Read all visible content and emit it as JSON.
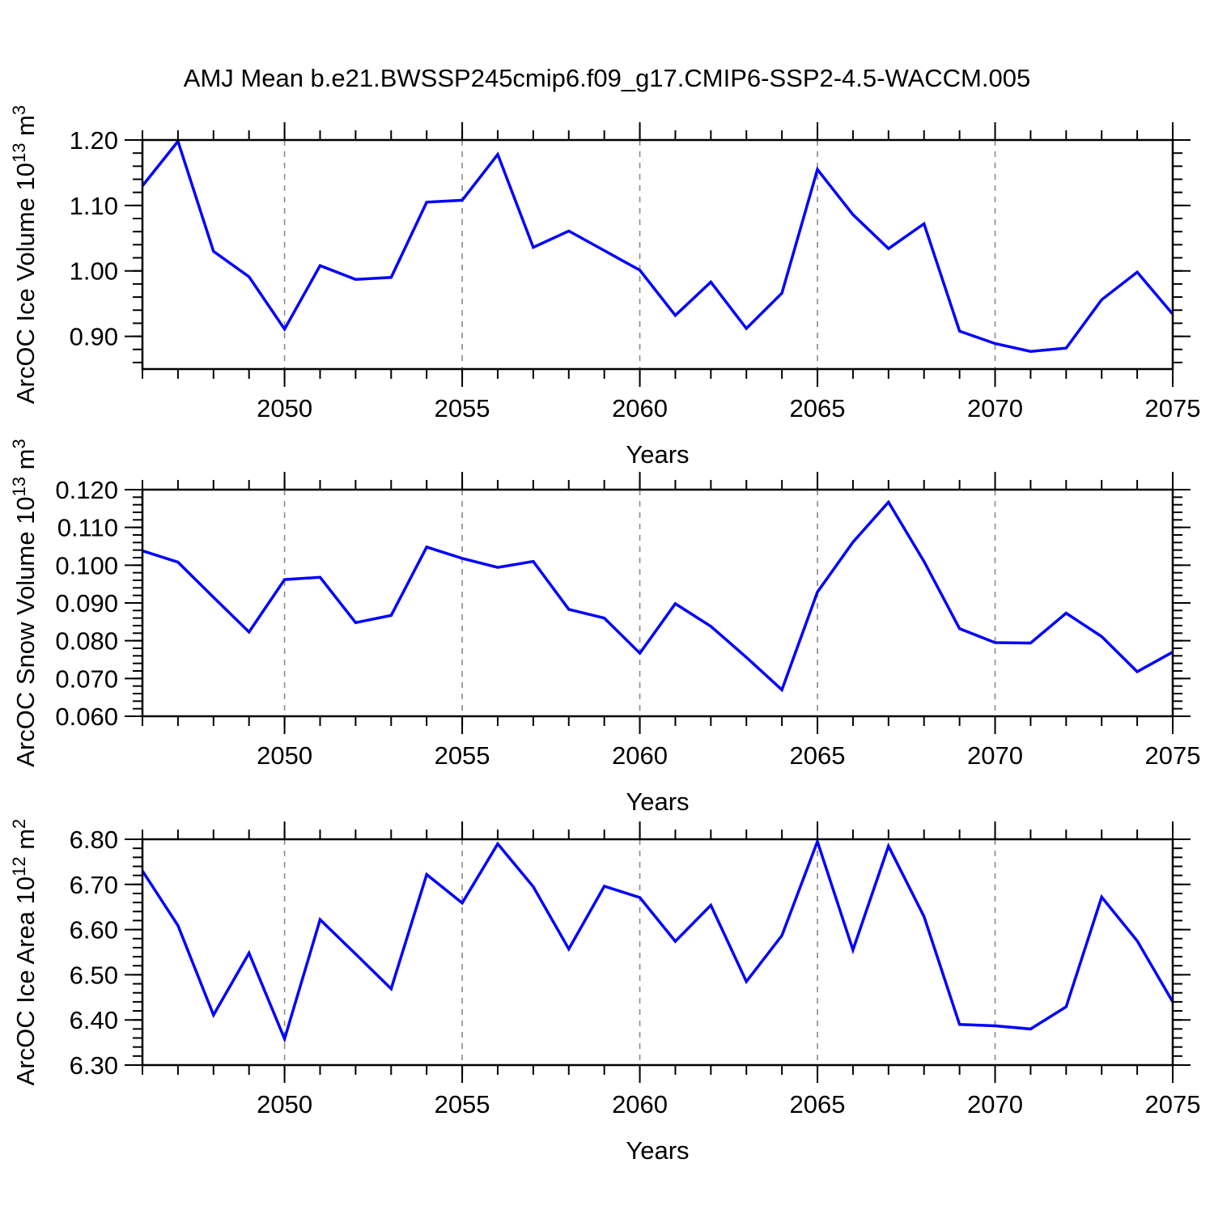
{
  "title": "AMJ Mean b.e21.BWSSP245cmip6.f09_g17.CMIP6-SSP2-4.5-WACCM.005",
  "style": {
    "line_color": "#0000ff",
    "grid_color": "#8a8a8a",
    "axis_color": "#000000"
  },
  "chart_data": [
    {
      "type": "line",
      "name": "ice-volume",
      "ylabel_segments": [
        {
          "t": "ArcOC Ice Volume 10",
          "sup": false
        },
        {
          "t": "13",
          "sup": true
        },
        {
          "t": " m",
          "sup": false
        },
        {
          "t": "3",
          "sup": true
        }
      ],
      "xlabel": "Years",
      "x": [
        2046,
        2047,
        2048,
        2049,
        2050,
        2051,
        2052,
        2053,
        2054,
        2055,
        2056,
        2057,
        2058,
        2059,
        2060,
        2061,
        2062,
        2063,
        2064,
        2065,
        2066,
        2067,
        2068,
        2069,
        2070,
        2071,
        2072,
        2073,
        2074,
        2075
      ],
      "values": [
        1.13,
        1.198,
        1.03,
        0.991,
        0.911,
        1.008,
        0.987,
        0.99,
        1.105,
        1.108,
        1.178,
        1.036,
        1.061,
        1.031,
        1.001,
        0.932,
        0.983,
        0.912,
        0.966,
        1.155,
        1.086,
        1.034,
        1.072,
        0.908,
        0.889,
        0.877,
        0.882,
        0.956,
        0.998,
        0.934
      ],
      "xlim": [
        2046,
        2075
      ],
      "ylim": [
        0.85,
        1.2
      ],
      "yticks": {
        "start": 0.9,
        "end": 1.2,
        "step": 0.1,
        "minor_step": 0.02,
        "decimals": 2
      },
      "xticks": {
        "major": [
          2050,
          2055,
          2060,
          2065,
          2070,
          2075
        ],
        "minor_step": 1
      },
      "grid_years": [
        2050,
        2055,
        2060,
        2065,
        2070
      ],
      "grid_on": true,
      "legend": null
    },
    {
      "type": "line",
      "name": "snow-volume",
      "ylabel_segments": [
        {
          "t": "ArcOC Snow Volume 10",
          "sup": false
        },
        {
          "t": "13",
          "sup": true
        },
        {
          "t": " m",
          "sup": false
        },
        {
          "t": "3",
          "sup": true
        }
      ],
      "xlabel": "Years",
      "x": [
        2046,
        2047,
        2048,
        2049,
        2050,
        2051,
        2052,
        2053,
        2054,
        2055,
        2056,
        2057,
        2058,
        2059,
        2060,
        2061,
        2062,
        2063,
        2064,
        2065,
        2066,
        2067,
        2068,
        2069,
        2070,
        2071,
        2072,
        2073,
        2074,
        2075
      ],
      "values": [
        0.1038,
        0.1008,
        0.0915,
        0.0823,
        0.0962,
        0.0968,
        0.0848,
        0.0867,
        0.1048,
        0.1018,
        0.0994,
        0.101,
        0.0883,
        0.086,
        0.0767,
        0.0898,
        0.0838,
        0.0756,
        0.067,
        0.0929,
        0.1061,
        0.1167,
        0.101,
        0.0832,
        0.0795,
        0.0794,
        0.0873,
        0.0811,
        0.0718,
        0.077
      ],
      "xlim": [
        2046,
        2075
      ],
      "ylim": [
        0.06,
        0.12
      ],
      "yticks": {
        "start": 0.06,
        "end": 0.12,
        "step": 0.01,
        "minor_step": 0.002,
        "decimals": 3
      },
      "xticks": {
        "major": [
          2050,
          2055,
          2060,
          2065,
          2070,
          2075
        ],
        "minor_step": 1
      },
      "grid_years": [
        2050,
        2055,
        2060,
        2065,
        2070
      ],
      "grid_on": true,
      "legend": null
    },
    {
      "type": "line",
      "name": "ice-area",
      "ylabel_segments": [
        {
          "t": "ArcOC Ice Area 10",
          "sup": false
        },
        {
          "t": "12",
          "sup": true
        },
        {
          "t": " m",
          "sup": false
        },
        {
          "t": "2",
          "sup": true
        }
      ],
      "xlabel": "Years",
      "x": [
        2046,
        2047,
        2048,
        2049,
        2050,
        2051,
        2052,
        2053,
        2054,
        2055,
        2056,
        2057,
        2058,
        2059,
        2060,
        2061,
        2062,
        2063,
        2064,
        2065,
        2066,
        2067,
        2068,
        2069,
        2070,
        2071,
        2072,
        2073,
        2074,
        2075
      ],
      "values": [
        6.73,
        6.609,
        6.411,
        6.548,
        6.358,
        6.622,
        6.546,
        6.469,
        6.722,
        6.659,
        6.79,
        6.695,
        6.557,
        6.696,
        6.671,
        6.574,
        6.654,
        6.485,
        6.587,
        6.795,
        6.555,
        6.785,
        6.629,
        6.39,
        6.387,
        6.38,
        6.429,
        6.672,
        6.575,
        6.44
      ],
      "xlim": [
        2046,
        2075
      ],
      "ylim": [
        6.3,
        6.8
      ],
      "yticks": {
        "start": 6.3,
        "end": 6.8,
        "step": 0.1,
        "minor_step": 0.02,
        "decimals": 2
      },
      "xticks": {
        "major": [
          2050,
          2055,
          2060,
          2065,
          2070,
          2075
        ],
        "minor_step": 1
      },
      "grid_years": [
        2050,
        2055,
        2060,
        2065,
        2070
      ],
      "grid_on": true,
      "legend": null
    }
  ]
}
